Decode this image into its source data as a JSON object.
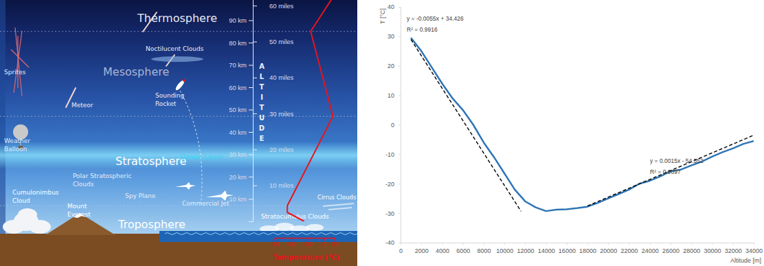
{
  "chart_data": [
    {
      "type": "line",
      "x_label": "Temperature (°C)",
      "y_label": "ALTITUDE",
      "xlim": [
        -90,
        20
      ],
      "xticks": [
        -90,
        -60,
        -30,
        0,
        20
      ],
      "ylim": [
        0,
        100
      ],
      "yticks": [
        {
          "value": 10,
          "label": "10 km"
        },
        {
          "value": 20,
          "label": "20 km"
        },
        {
          "value": 30,
          "label": "30 km"
        },
        {
          "value": 40,
          "label": "40 km"
        },
        {
          "value": 50,
          "label": "50 km"
        },
        {
          "value": 60,
          "label": "60 km"
        },
        {
          "value": 70,
          "label": "70 km"
        },
        {
          "value": 80,
          "label": "80 km"
        },
        {
          "value": 90,
          "label": "90 km"
        }
      ],
      "y2lim": [
        0,
        62.137
      ],
      "y2ticks": [
        {
          "value": 10,
          "label": "10 miles"
        },
        {
          "value": 20,
          "label": "20 miles"
        },
        {
          "value": 30,
          "label": "30 miles"
        },
        {
          "value": 40,
          "label": "40 miles"
        },
        {
          "value": 50,
          "label": "50 miles"
        },
        {
          "value": 60,
          "label": "60 miles"
        }
      ],
      "layers": [
        "Thermosphere",
        "Mesosphere",
        "Stratosphere",
        "Troposphere"
      ],
      "layer_boundaries": [
        85,
        47,
        7
      ],
      "annotations": [
        "Noctilucent Clouds",
        "Sprites",
        "Meteor",
        "Sounding Rocket",
        "Ozone Layer",
        "Weather Balloon",
        "Polar Stratospheric Clouds",
        "Spy Plane",
        "Cumulonimbus Cloud",
        "Mount Everest",
        "Commercial Jet",
        "Stratocumulus Clouds",
        "Cirrus Clouds"
      ],
      "series": [
        {
          "color": "#e8141b",
          "x": [
            -36,
            -67,
            -67,
            17,
            -24,
            16
          ],
          "values": [
            0,
            4,
            7,
            47,
            85,
            100
          ]
        }
      ]
    },
    {
      "type": "line",
      "x_label": "Altitude [m]",
      "y_label": "T [°C]",
      "xlim": [
        0,
        34000
      ],
      "xticks": [
        0,
        2000,
        4000,
        6000,
        8000,
        10000,
        12000,
        14000,
        16000,
        18000,
        20000,
        22000,
        24000,
        26000,
        28000,
        30000,
        32000,
        34000
      ],
      "ylim": [
        -40,
        40
      ],
      "yticks": [
        -40,
        -30,
        -20,
        -10,
        0,
        10,
        20,
        30,
        40
      ],
      "grid": false,
      "annotations": [
        "y = -0.0055x + 34.426",
        "R² = 0.9916",
        "y = 0.0015x - 54.552",
        "R² = 0.9897"
      ],
      "series": [
        {
          "color": "#2e75b6",
          "line_style": "solid",
          "x": [
            1000,
            2000,
            3000,
            4000,
            5000,
            6000,
            7000,
            8000,
            9000,
            10000,
            11000,
            12000,
            13000,
            14000,
            15000,
            16000,
            17000,
            18000,
            19000,
            20000,
            21000,
            22000,
            23000,
            24000,
            25000,
            26000,
            27000,
            28000,
            29000,
            30000,
            31000,
            32000,
            33000,
            34000
          ],
          "values": [
            29.5,
            25,
            19.5,
            14,
            9,
            5,
            0,
            -6,
            -11,
            -16.5,
            -22,
            -26,
            -28,
            -29.3,
            -28.8,
            -28.7,
            -28.3,
            -27.8,
            -26.5,
            -25,
            -23.5,
            -22,
            -20,
            -19,
            -17.5,
            -15.8,
            -15.2,
            -13.8,
            -12.5,
            -10.8,
            -9.3,
            -8,
            -6.5,
            -5.5
          ]
        },
        {
          "color": "#000000",
          "line_style": "dashed",
          "x": [
            1000,
            11600
          ],
          "values": [
            28.926,
            -29.374
          ]
        },
        {
          "color": "#000000",
          "line_style": "dashed",
          "x": [
            18000,
            34000
          ],
          "values": [
            -27.552,
            -3.552
          ]
        }
      ]
    }
  ]
}
